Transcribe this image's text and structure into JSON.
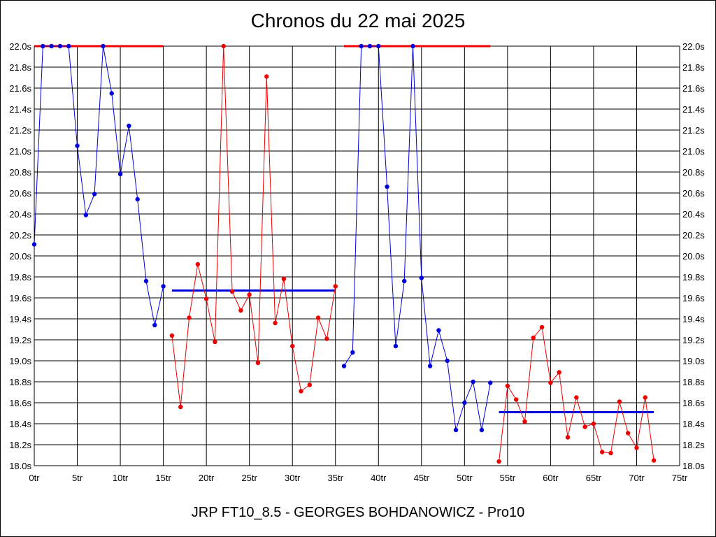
{
  "chart_data": {
    "type": "line",
    "title": "Chronos du 22 mai 2025",
    "subtitle": "JRP FT10_8.5 - GEORGES BOHDANOWICZ - Pro10",
    "xlabel": "",
    "ylabel": "",
    "xlim": [
      0,
      75
    ],
    "ylim": [
      18.0,
      22.0
    ],
    "grid": true,
    "x_tick_labels": [
      "0tr",
      "5tr",
      "10tr",
      "15tr",
      "20tr",
      "25tr",
      "30tr",
      "35tr",
      "40tr",
      "45tr",
      "50tr",
      "55tr",
      "60tr",
      "65tr",
      "70tr",
      "75tr"
    ],
    "y_tick_labels": [
      "18.0s",
      "18.2s",
      "18.4s",
      "18.6s",
      "18.8s",
      "19.0s",
      "19.2s",
      "19.4s",
      "19.6s",
      "19.8s",
      "20.0s",
      "20.2s",
      "20.4s",
      "20.6s",
      "20.8s",
      "21.0s",
      "21.2s",
      "21.4s",
      "21.6s",
      "21.8s",
      "22.0s"
    ],
    "colors": {
      "blue": "#0000dd",
      "red": "#ee0000"
    },
    "series": [
      {
        "color": "blue",
        "x": [
          0,
          1,
          2,
          3,
          4,
          5,
          6,
          7,
          8,
          9,
          10,
          11,
          12,
          13,
          14,
          15
        ],
        "y": [
          20.11,
          22.0,
          22.0,
          22.0,
          22.0,
          21.05,
          20.39,
          20.59,
          22.0,
          21.55,
          20.78,
          21.24,
          20.54,
          19.76,
          19.34,
          19.71
        ]
      },
      {
        "color": "red",
        "x": [
          16,
          17,
          18,
          19,
          20,
          21,
          22,
          23,
          24,
          25,
          26,
          27,
          28,
          29,
          30,
          31,
          32,
          33,
          34,
          35
        ],
        "y": [
          19.24,
          18.56,
          19.41,
          19.92,
          19.59,
          19.18,
          22.0,
          19.66,
          19.48,
          19.63,
          18.98,
          21.71,
          19.36,
          19.78,
          19.14,
          18.71,
          18.77,
          19.41,
          19.21,
          19.71
        ]
      },
      {
        "color": "blue",
        "x": [
          36,
          37,
          38,
          39,
          40,
          41,
          42,
          43,
          44,
          45,
          46,
          47,
          48,
          49,
          50,
          51,
          52,
          53
        ],
        "y": [
          18.95,
          19.08,
          22.0,
          22.0,
          22.0,
          20.66,
          19.14,
          19.76,
          22.0,
          19.79,
          18.95,
          19.29,
          19.0,
          18.34,
          18.6,
          18.8,
          18.34,
          18.79
        ]
      },
      {
        "color": "red",
        "x": [
          54,
          55,
          56,
          57,
          58,
          59,
          60,
          61,
          62,
          63,
          64,
          65,
          66,
          67,
          68,
          69,
          70,
          71,
          72
        ],
        "y": [
          18.04,
          18.76,
          18.63,
          18.42,
          19.22,
          19.32,
          18.79,
          18.89,
          18.27,
          18.65,
          18.37,
          18.4,
          18.13,
          18.12,
          18.61,
          18.31,
          18.17,
          18.65,
          18.05
        ]
      }
    ],
    "averages": [
      {
        "color": "red",
        "x": [
          0,
          15
        ],
        "y": 22.0
      },
      {
        "color": "blue",
        "x": [
          16,
          35
        ],
        "y": 19.67
      },
      {
        "color": "red",
        "x": [
          36,
          53
        ],
        "y": 22.0
      },
      {
        "color": "blue",
        "x": [
          54,
          72
        ],
        "y": 18.51
      }
    ]
  }
}
